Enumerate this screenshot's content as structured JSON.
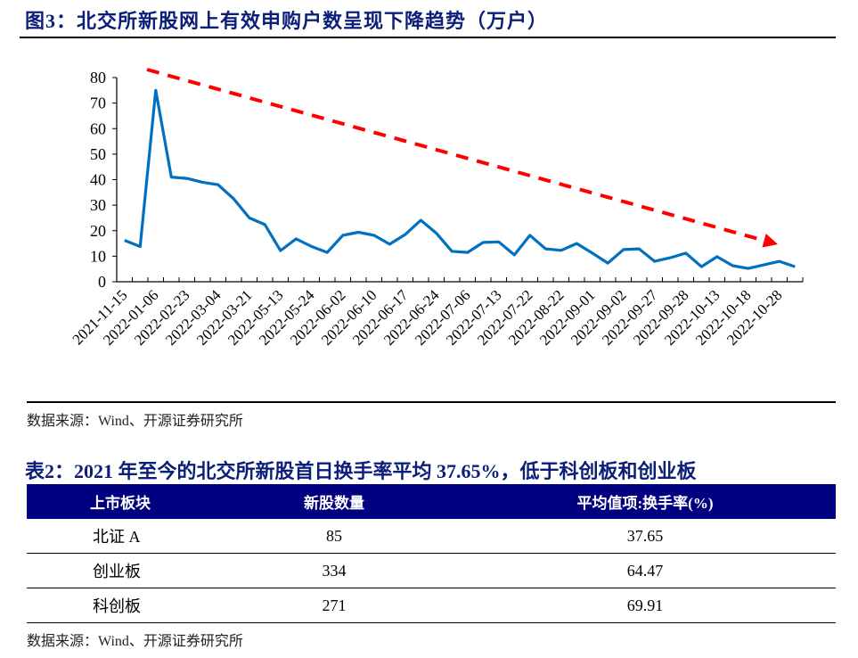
{
  "figure": {
    "title": "图3：北交所新股网上有效申购户数呈现下降趋势（万户）",
    "source": "数据来源：Wind、开源证券研究所"
  },
  "chart_data": {
    "type": "line",
    "title": "北交所新股网上有效申购户数呈现下降趋势（万户）",
    "xlabel": "",
    "ylabel": "万户",
    "ylim": [
      0,
      80
    ],
    "yticks": [
      0,
      10,
      20,
      30,
      40,
      50,
      60,
      70,
      80
    ],
    "grid": false,
    "legend": null,
    "x_tick_labels": [
      "2021-11-15",
      "2022-01-06",
      "2022-02-23",
      "2022-03-04",
      "2022-03-21",
      "2022-05-13",
      "2022-05-24",
      "2022-06-02",
      "2022-06-10",
      "2022-06-17",
      "2022-06-24",
      "2022-07-06",
      "2022-07-13",
      "2022-07-22",
      "2022-08-22",
      "2022-09-01",
      "2022-09-02",
      "2022-09-27",
      "2022-09-28",
      "2022-10-13",
      "2022-10-18",
      "2022-10-28"
    ],
    "series": [
      {
        "name": "网上有效申购户数",
        "color": "#0070C0",
        "values": [
          16.2,
          13.8,
          75.0,
          41.0,
          40.5,
          39.0,
          38.0,
          32.5,
          25.0,
          22.4,
          12.2,
          16.8,
          13.8,
          11.5,
          18.2,
          19.4,
          18.2,
          14.7,
          18.5,
          24.1,
          19.0,
          11.9,
          11.5,
          15.4,
          15.6,
          10.5,
          18.2,
          12.9,
          12.3,
          15.0,
          11.2,
          7.3,
          12.6,
          12.9,
          8.0,
          9.4,
          11.2,
          5.9,
          9.8,
          6.3,
          5.2,
          6.6,
          8.0,
          5.9
        ]
      }
    ],
    "annotations": [
      {
        "type": "trend-arrow",
        "style": "dashed",
        "color": "#FF0000",
        "description": "下降趋势",
        "from": [
          2,
          82.5
        ],
        "to": [
          41,
          14.5
        ]
      }
    ]
  },
  "table": {
    "title": "表2：2021 年至今的北交所新股首日换手率平均 37.65%，低于科创板和创业板",
    "header_color": "#000080",
    "columns": [
      "上市板块",
      "新股数量",
      "平均值项:换手率(%)"
    ],
    "rows": [
      [
        "北证 A",
        "85",
        "37.65"
      ],
      [
        "创业板",
        "334",
        "64.47"
      ],
      [
        "科创板",
        "271",
        "69.91"
      ]
    ],
    "source": "数据来源：Wind、开源证券研究所"
  }
}
